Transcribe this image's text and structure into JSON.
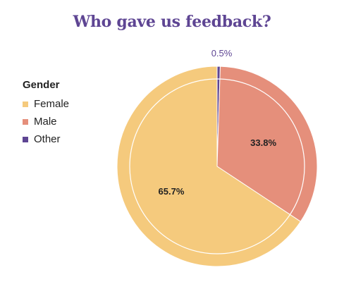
{
  "chart_data": {
    "type": "pie",
    "title": "Who gave us feedback?",
    "legend_title": "Gender",
    "legend_position": "left",
    "slices": [
      {
        "name": "Female",
        "value": 65.7,
        "label": "65.7%",
        "color": "#f5ca7d"
      },
      {
        "name": "Male",
        "value": 33.8,
        "label": "33.8%",
        "color": "#e58f7b"
      },
      {
        "name": "Other",
        "value": 0.5,
        "label": "0.5%",
        "color": "#5e4593"
      }
    ]
  }
}
